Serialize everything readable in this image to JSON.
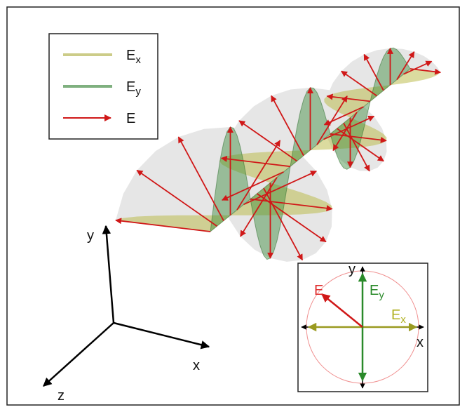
{
  "legend": [
    {
      "label": "E",
      "sub": "x"
    },
    {
      "label": "E",
      "sub": "y"
    },
    {
      "label": "E"
    }
  ],
  "axes": {
    "x": "x",
    "y": "y",
    "z": "z"
  },
  "inset": {
    "y": "y",
    "x": "x",
    "e": "E",
    "ey": {
      "label": "E",
      "sub": "y"
    },
    "ex": {
      "label": "E",
      "sub": "x"
    }
  }
}
